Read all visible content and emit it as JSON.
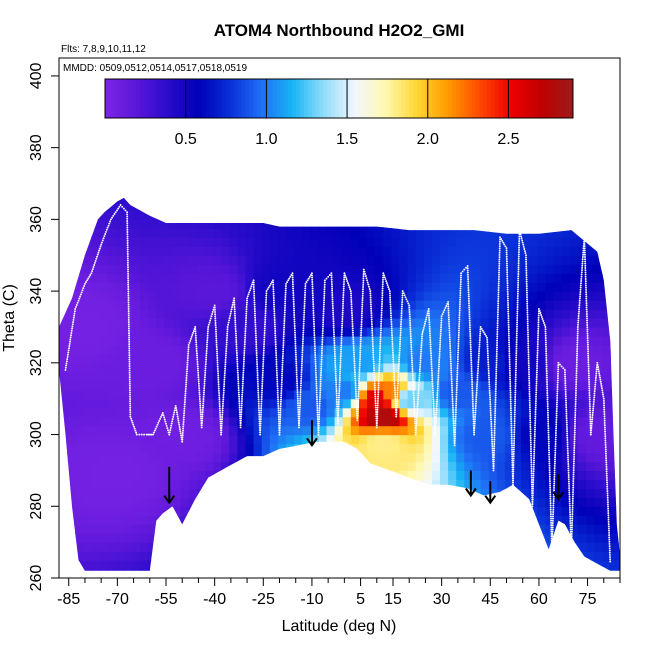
{
  "chart_data": {
    "type": "heatmap",
    "title": "ATOM4 Northbound H2O2_GMI",
    "annotations": {
      "flights": "Flts: 7,8,9,10,11,12",
      "dates": "MMDD: 0509,0512,0514,0517,0518,0519"
    },
    "xlabel": "Latitude (deg N)",
    "ylabel": "Theta (C)",
    "xlim": [
      -88,
      85
    ],
    "ylim": [
      260,
      405
    ],
    "x_ticks": [
      -85,
      -70,
      -55,
      -40,
      -25,
      -10,
      5,
      15,
      30,
      45,
      60,
      75
    ],
    "x_minor_ticks": [
      -80,
      -75,
      -65,
      -60,
      -50,
      -45,
      -35,
      -30,
      -20,
      -15,
      -5,
      0,
      10,
      20,
      25,
      35,
      40,
      50,
      55,
      65,
      70,
      80,
      85
    ],
    "y_ticks": [
      260,
      280,
      300,
      320,
      340,
      360,
      380,
      400
    ],
    "colorbar": {
      "min": 0,
      "max": 2.9,
      "ticks": [
        0.5,
        1.0,
        1.5,
        2.0,
        2.5
      ],
      "tick_labels": [
        "0.5",
        "1.0",
        "1.5",
        "2.0",
        "2.5"
      ],
      "colors": [
        "#7d24e6",
        "#5b17d9",
        "#2b0ccc",
        "#0000b8",
        "#0a2fd8",
        "#1f6ff5",
        "#17b4f5",
        "#8fdcfa",
        "#f2f7ff",
        "#fff8b0",
        "#ffd633",
        "#ff9a00",
        "#ff4a00",
        "#ee0000",
        "#c00000",
        "#9c1c1c"
      ]
    },
    "domain_boundary": {
      "top": [
        [
          -88,
          330
        ],
        [
          -84,
          338
        ],
        [
          -80,
          350
        ],
        [
          -76,
          360
        ],
        [
          -74,
          362
        ],
        [
          -70,
          365
        ],
        [
          -68,
          366
        ],
        [
          -66,
          364
        ],
        [
          -60,
          361
        ],
        [
          -55,
          359
        ],
        [
          -40,
          359
        ],
        [
          -30,
          359
        ],
        [
          -25,
          359
        ],
        [
          -20,
          358
        ],
        [
          -10,
          358
        ],
        [
          0,
          358
        ],
        [
          10,
          358
        ],
        [
          20,
          357
        ],
        [
          30,
          357
        ],
        [
          40,
          357
        ],
        [
          50,
          356
        ],
        [
          60,
          356
        ],
        [
          70,
          357
        ],
        [
          78,
          351
        ],
        [
          80,
          343
        ],
        [
          82,
          326
        ],
        [
          83,
          300
        ],
        [
          84,
          275
        ],
        [
          85,
          266
        ]
      ],
      "bottom": [
        [
          -88,
          318
        ],
        [
          -86,
          300
        ],
        [
          -84,
          280
        ],
        [
          -82,
          265
        ],
        [
          -80,
          262
        ],
        [
          -64,
          262
        ],
        [
          -60,
          262
        ],
        [
          -58,
          276
        ],
        [
          -56,
          278
        ],
        [
          -53,
          280
        ],
        [
          -50,
          275
        ],
        [
          -46,
          282
        ],
        [
          -42,
          288
        ],
        [
          -36,
          291
        ],
        [
          -30,
          294
        ],
        [
          -25,
          294
        ],
        [
          -20,
          296
        ],
        [
          -14,
          297
        ],
        [
          -9,
          298
        ],
        [
          -5,
          298
        ],
        [
          0,
          298
        ],
        [
          4,
          296
        ],
        [
          8,
          292
        ],
        [
          14,
          290
        ],
        [
          20,
          288
        ],
        [
          26,
          286
        ],
        [
          32,
          286
        ],
        [
          38,
          285
        ],
        [
          43,
          283
        ],
        [
          48,
          284
        ],
        [
          52,
          286
        ],
        [
          57,
          282
        ],
        [
          60,
          275
        ],
        [
          63,
          268
        ],
        [
          66,
          276
        ],
        [
          68,
          275
        ],
        [
          71,
          270
        ],
        [
          74,
          266
        ],
        [
          78,
          264
        ],
        [
          82,
          262
        ],
        [
          85,
          262
        ]
      ]
    },
    "value_field": [
      {
        "lat": -80,
        "theta": 330,
        "value": 0.05
      },
      {
        "lat": -60,
        "theta": 320,
        "value": 0.1
      },
      {
        "lat": -40,
        "theta": 340,
        "value": 0.2
      },
      {
        "lat": -30,
        "theta": 330,
        "value": 0.35
      },
      {
        "lat": -20,
        "theta": 340,
        "value": 0.5
      },
      {
        "lat": -10,
        "theta": 338,
        "value": 0.5
      },
      {
        "lat": 0,
        "theta": 335,
        "value": 0.45
      },
      {
        "lat": -20,
        "theta": 315,
        "value": 0.6
      },
      {
        "lat": -10,
        "theta": 308,
        "value": 0.9
      },
      {
        "lat": 0,
        "theta": 312,
        "value": 1.0
      },
      {
        "lat": 5,
        "theta": 320,
        "value": 1.1
      },
      {
        "lat": 10,
        "theta": 310,
        "value": 2.6
      },
      {
        "lat": 12,
        "theta": 305,
        "value": 2.8
      },
      {
        "lat": 14,
        "theta": 312,
        "value": 2.2
      },
      {
        "lat": 12,
        "theta": 298,
        "value": 1.8
      },
      {
        "lat": 20,
        "theta": 310,
        "value": 1.3
      },
      {
        "lat": 25,
        "theta": 320,
        "value": 1.0
      },
      {
        "lat": 35,
        "theta": 312,
        "value": 0.9
      },
      {
        "lat": 45,
        "theta": 320,
        "value": 0.7
      },
      {
        "lat": 45,
        "theta": 300,
        "value": 0.9
      },
      {
        "lat": 55,
        "theta": 320,
        "value": 0.5
      },
      {
        "lat": 60,
        "theta": 300,
        "value": 0.6
      },
      {
        "lat": 70,
        "theta": 320,
        "value": 0.1
      },
      {
        "lat": 78,
        "theta": 300,
        "value": 0.15
      },
      {
        "lat": -50,
        "theta": 300,
        "value": 0.08
      },
      {
        "lat": -70,
        "theta": 290,
        "value": 0.05
      }
    ],
    "flight_track": [
      {
        "lat": -86,
        "theta": 318
      },
      {
        "lat": -83,
        "theta": 335
      },
      {
        "lat": -80,
        "theta": 342
      },
      {
        "lat": -78,
        "theta": 345
      },
      {
        "lat": -75,
        "theta": 353
      },
      {
        "lat": -72,
        "theta": 360
      },
      {
        "lat": -69,
        "theta": 364
      },
      {
        "lat": -67,
        "theta": 362
      },
      {
        "lat": -66,
        "theta": 305
      },
      {
        "lat": -64,
        "theta": 300
      },
      {
        "lat": -61,
        "theta": 300
      },
      {
        "lat": -59,
        "theta": 300
      },
      {
        "lat": -56,
        "theta": 306
      },
      {
        "lat": -54,
        "theta": 300
      },
      {
        "lat": -52,
        "theta": 308
      },
      {
        "lat": -50,
        "theta": 298
      },
      {
        "lat": -48,
        "theta": 325
      },
      {
        "lat": -46,
        "theta": 330
      },
      {
        "lat": -44,
        "theta": 302
      },
      {
        "lat": -42,
        "theta": 330
      },
      {
        "lat": -40,
        "theta": 336
      },
      {
        "lat": -38,
        "theta": 300
      },
      {
        "lat": -36,
        "theta": 330
      },
      {
        "lat": -34,
        "theta": 338
      },
      {
        "lat": -32,
        "theta": 302
      },
      {
        "lat": -30,
        "theta": 338
      },
      {
        "lat": -28,
        "theta": 343
      },
      {
        "lat": -26,
        "theta": 300
      },
      {
        "lat": -24,
        "theta": 340
      },
      {
        "lat": -22,
        "theta": 343
      },
      {
        "lat": -20,
        "theta": 300
      },
      {
        "lat": -18,
        "theta": 342
      },
      {
        "lat": -16,
        "theta": 345
      },
      {
        "lat": -14,
        "theta": 302
      },
      {
        "lat": -12,
        "theta": 342
      },
      {
        "lat": -10,
        "theta": 345
      },
      {
        "lat": -8,
        "theta": 300
      },
      {
        "lat": -6,
        "theta": 343
      },
      {
        "lat": -4,
        "theta": 345
      },
      {
        "lat": -2,
        "theta": 303
      },
      {
        "lat": 0,
        "theta": 345
      },
      {
        "lat": 2,
        "theta": 340
      },
      {
        "lat": 4,
        "theta": 304
      },
      {
        "lat": 6,
        "theta": 346
      },
      {
        "lat": 8,
        "theta": 340
      },
      {
        "lat": 10,
        "theta": 302
      },
      {
        "lat": 12,
        "theta": 345
      },
      {
        "lat": 14,
        "theta": 340
      },
      {
        "lat": 16,
        "theta": 305
      },
      {
        "lat": 18,
        "theta": 340
      },
      {
        "lat": 20,
        "theta": 336
      },
      {
        "lat": 22,
        "theta": 300
      },
      {
        "lat": 24,
        "theta": 328
      },
      {
        "lat": 26,
        "theta": 335
      },
      {
        "lat": 28,
        "theta": 300
      },
      {
        "lat": 30,
        "theta": 333
      },
      {
        "lat": 32,
        "theta": 337
      },
      {
        "lat": 34,
        "theta": 297
      },
      {
        "lat": 36,
        "theta": 345
      },
      {
        "lat": 38,
        "theta": 347
      },
      {
        "lat": 40,
        "theta": 300
      },
      {
        "lat": 42,
        "theta": 330
      },
      {
        "lat": 44,
        "theta": 327
      },
      {
        "lat": 46,
        "theta": 290
      },
      {
        "lat": 48,
        "theta": 355
      },
      {
        "lat": 50,
        "theta": 352
      },
      {
        "lat": 52,
        "theta": 286
      },
      {
        "lat": 54,
        "theta": 357
      },
      {
        "lat": 56,
        "theta": 350
      },
      {
        "lat": 58,
        "theta": 280
      },
      {
        "lat": 60,
        "theta": 335
      },
      {
        "lat": 62,
        "theta": 330
      },
      {
        "lat": 64,
        "theta": 268
      },
      {
        "lat": 66,
        "theta": 320
      },
      {
        "lat": 68,
        "theta": 318
      },
      {
        "lat": 70,
        "theta": 268
      },
      {
        "lat": 72,
        "theta": 330
      },
      {
        "lat": 74,
        "theta": 355
      },
      {
        "lat": 76,
        "theta": 300
      },
      {
        "lat": 78,
        "theta": 320
      },
      {
        "lat": 80,
        "theta": 310
      },
      {
        "lat": 82,
        "theta": 264
      }
    ],
    "arrows": [
      {
        "lat": -54,
        "theta_start": 291,
        "theta_end": 281
      },
      {
        "lat": -10,
        "theta_start": 304,
        "theta_end": 297
      },
      {
        "lat": 39,
        "theta_start": 290,
        "theta_end": 283
      },
      {
        "lat": 45,
        "theta_start": 287,
        "theta_end": 281
      },
      {
        "lat": 66,
        "theta_start": 289,
        "theta_end": 282
      }
    ]
  }
}
